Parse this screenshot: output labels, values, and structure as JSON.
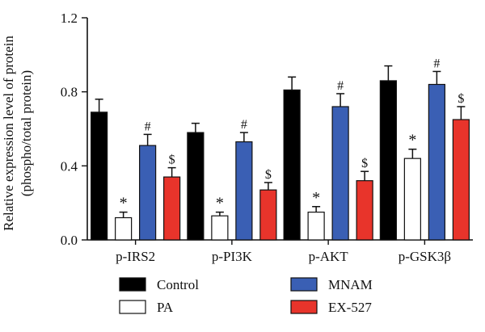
{
  "chart_data": {
    "type": "bar",
    "ylabel_line1": "Relative expression level of protein",
    "ylabel_line2": "(phospho/total protein)",
    "ylim": [
      0,
      1.2
    ],
    "yticks": [
      "0.0",
      "0.4",
      "0.8",
      "1.2"
    ],
    "categories": [
      "p-IRS2",
      "p-PI3K",
      "p-AKT",
      "p-GSK3β"
    ],
    "series": [
      {
        "name": "Control",
        "color": "#000000",
        "values": [
          0.69,
          0.58,
          0.81,
          0.86
        ],
        "errors": [
          0.07,
          0.05,
          0.07,
          0.08
        ],
        "markers": [
          "",
          "",
          "",
          ""
        ]
      },
      {
        "name": "PA",
        "color": "#ffffff",
        "values": [
          0.12,
          0.13,
          0.15,
          0.44
        ],
        "errors": [
          0.03,
          0.02,
          0.03,
          0.05
        ],
        "markers": [
          "*",
          "*",
          "*",
          "*"
        ]
      },
      {
        "name": "MNAM",
        "color": "#3a5fb4",
        "values": [
          0.51,
          0.53,
          0.72,
          0.84
        ],
        "errors": [
          0.06,
          0.05,
          0.07,
          0.07
        ],
        "markers": [
          "#",
          "#",
          "#",
          "#"
        ]
      },
      {
        "name": "EX-527",
        "color": "#e8342b",
        "values": [
          0.34,
          0.27,
          0.32,
          0.65
        ],
        "errors": [
          0.05,
          0.04,
          0.05,
          0.07
        ],
        "markers": [
          "$",
          "$",
          "$",
          "$"
        ]
      }
    ],
    "legend_placement": "bottom"
  }
}
